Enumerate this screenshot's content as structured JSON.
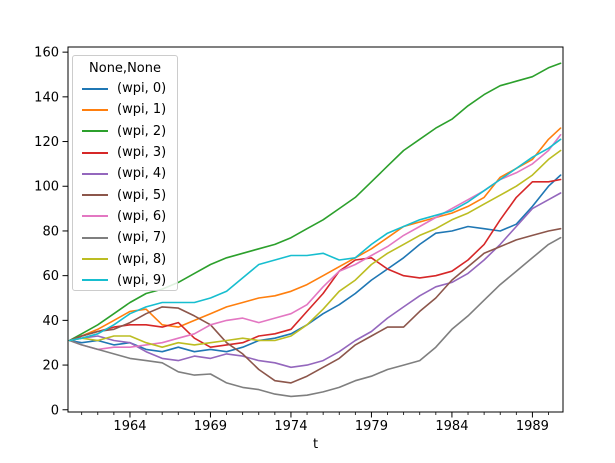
{
  "figure": {
    "background": "#ffffff"
  },
  "legend": {
    "title": "None,None",
    "entries": [
      {
        "label": "(wpi, 0)",
        "color": "#1f77b4"
      },
      {
        "label": "(wpi, 1)",
        "color": "#ff7f0e"
      },
      {
        "label": "(wpi, 2)",
        "color": "#2ca02c"
      },
      {
        "label": "(wpi, 3)",
        "color": "#d62728"
      },
      {
        "label": "(wpi, 4)",
        "color": "#9467bd"
      },
      {
        "label": "(wpi, 5)",
        "color": "#8c564b"
      },
      {
        "label": "(wpi, 6)",
        "color": "#e377c2"
      },
      {
        "label": "(wpi, 7)",
        "color": "#7f7f7f"
      },
      {
        "label": "(wpi, 8)",
        "color": "#bcbd22"
      },
      {
        "label": "(wpi, 9)",
        "color": "#17becf"
      }
    ]
  },
  "chart_data": {
    "type": "line",
    "title": "",
    "xlabel": "t",
    "ylabel": "",
    "legend_title": "None,None",
    "legend_position": "upper left",
    "grid": false,
    "xlim": [
      1960.15,
      1990.9
    ],
    "ylim": [
      -1.0,
      162.3
    ],
    "x_ticks": [
      1964,
      1969,
      1974,
      1979,
      1984,
      1989
    ],
    "y_ticks": [
      0,
      20,
      40,
      60,
      80,
      100,
      120,
      140,
      160
    ],
    "x": [
      1960.25,
      1961,
      1962,
      1963,
      1964,
      1965,
      1966,
      1967,
      1968,
      1969,
      1970,
      1971,
      1972,
      1973,
      1974,
      1975,
      1976,
      1977,
      1978,
      1979,
      1980,
      1981,
      1982,
      1983,
      1984,
      1985,
      1986,
      1987,
      1988,
      1989,
      1990,
      1990.75
    ],
    "series": [
      {
        "name": "(wpi, 0)",
        "color": "#1f77b4",
        "values": [
          31,
          30,
          31,
          29,
          30,
          27,
          26,
          28,
          26,
          27,
          26,
          28,
          31,
          32,
          34,
          38,
          43,
          47,
          52,
          58,
          63,
          68,
          74,
          79,
          80,
          82,
          81,
          80,
          83,
          91,
          100,
          105
        ]
      },
      {
        "name": "(wpi, 1)",
        "color": "#ff7f0e",
        "values": [
          31,
          33,
          36,
          40,
          44,
          45,
          38,
          37,
          40,
          43,
          46,
          48,
          50,
          51,
          53,
          56,
          60,
          64,
          68,
          72,
          77,
          82,
          84,
          86,
          88,
          91,
          95,
          104,
          108,
          112,
          121,
          126
        ]
      },
      {
        "name": "(wpi, 2)",
        "color": "#2ca02c",
        "values": [
          31,
          34,
          38,
          43,
          48,
          52,
          54,
          57,
          61,
          65,
          68,
          70,
          72,
          74,
          77,
          81,
          85,
          90,
          95,
          102,
          109,
          116,
          121,
          126,
          130,
          136,
          141,
          145,
          147,
          149,
          153,
          155
        ]
      },
      {
        "name": "(wpi, 3)",
        "color": "#d62728",
        "values": [
          31,
          33,
          35,
          37,
          38,
          38,
          37,
          39,
          32,
          28,
          29,
          30,
          33,
          34,
          36,
          44,
          52,
          62,
          67,
          68,
          63,
          60,
          59,
          60,
          62,
          67,
          74,
          85,
          95,
          102,
          102,
          103
        ]
      },
      {
        "name": "(wpi, 4)",
        "color": "#9467bd",
        "values": [
          31,
          32,
          33,
          31,
          30,
          26,
          23,
          22,
          24,
          23,
          25,
          24,
          22,
          21,
          19,
          20,
          22,
          26,
          31,
          35,
          41,
          46,
          51,
          55,
          57,
          61,
          67,
          74,
          82,
          90,
          94,
          97
        ]
      },
      {
        "name": "(wpi, 5)",
        "color": "#8c564b",
        "values": [
          31,
          33,
          35,
          36,
          39,
          43,
          46,
          45.5,
          42,
          38,
          30,
          25,
          18,
          13,
          12,
          15,
          19,
          23,
          29,
          33,
          37,
          37,
          44,
          50,
          58,
          64,
          70,
          73,
          76,
          78,
          80,
          81
        ]
      },
      {
        "name": "(wpi, 6)",
        "color": "#e377c2",
        "values": [
          31,
          29,
          27,
          28,
          28,
          29,
          30,
          32,
          34,
          38,
          40,
          41,
          39,
          41,
          43,
          47,
          55,
          62,
          65,
          69,
          73,
          78,
          82,
          86,
          90,
          94,
          98,
          103,
          106,
          110,
          116,
          123
        ]
      },
      {
        "name": "(wpi, 7)",
        "color": "#7f7f7f",
        "values": [
          31,
          29,
          27,
          25,
          23,
          22,
          21,
          17,
          15.5,
          16,
          12,
          10,
          9,
          7,
          6,
          6.5,
          8,
          10,
          13,
          15,
          18,
          20,
          22,
          28,
          36,
          42,
          49,
          56,
          62,
          68,
          74,
          77
        ]
      },
      {
        "name": "(wpi, 8)",
        "color": "#bcbd22",
        "values": [
          31,
          32,
          31,
          33,
          33,
          30,
          28,
          30,
          29,
          30,
          31,
          32,
          31,
          31,
          33,
          38,
          45,
          53,
          58,
          65,
          70,
          74,
          78,
          81,
          85,
          88,
          92,
          96,
          100,
          105,
          112,
          116
        ]
      },
      {
        "name": "(wpi, 9)",
        "color": "#17becf",
        "values": [
          31,
          32,
          34,
          38,
          43,
          46,
          48,
          48,
          48,
          50,
          53,
          59,
          65,
          67,
          69,
          69,
          70,
          67,
          68,
          74,
          79,
          82,
          85,
          87,
          89,
          93,
          98,
          103,
          108,
          113,
          117,
          121
        ]
      }
    ]
  }
}
